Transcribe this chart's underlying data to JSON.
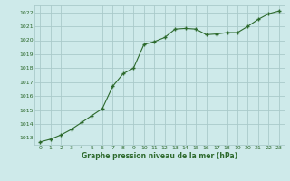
{
  "x": [
    0,
    1,
    2,
    3,
    4,
    5,
    6,
    7,
    8,
    9,
    10,
    11,
    12,
    13,
    14,
    15,
    16,
    17,
    18,
    19,
    20,
    21,
    22,
    23
  ],
  "y": [
    1012.7,
    1012.9,
    1013.2,
    1013.6,
    1014.1,
    1014.6,
    1015.1,
    1016.7,
    1017.6,
    1018.0,
    1019.7,
    1019.9,
    1020.2,
    1020.8,
    1020.85,
    1020.8,
    1020.4,
    1020.45,
    1020.55,
    1020.55,
    1021.0,
    1021.5,
    1021.9,
    1022.1
  ],
  "line_color": "#2d6a2d",
  "marker_color": "#2d6a2d",
  "bg_color": "#ceeaea",
  "grid_color": "#aacaca",
  "xlabel": "Graphe pression niveau de la mer (hPa)",
  "xlabel_color": "#2d6a2d",
  "tick_color": "#2d6a2d",
  "ylim": [
    1012.5,
    1022.5
  ],
  "xlim": [
    -0.5,
    23.5
  ],
  "yticks": [
    1013,
    1014,
    1015,
    1016,
    1017,
    1018,
    1019,
    1020,
    1021,
    1022
  ],
  "xticks": [
    0,
    1,
    2,
    3,
    4,
    5,
    6,
    7,
    8,
    9,
    10,
    11,
    12,
    13,
    14,
    15,
    16,
    17,
    18,
    19,
    20,
    21,
    22,
    23
  ]
}
